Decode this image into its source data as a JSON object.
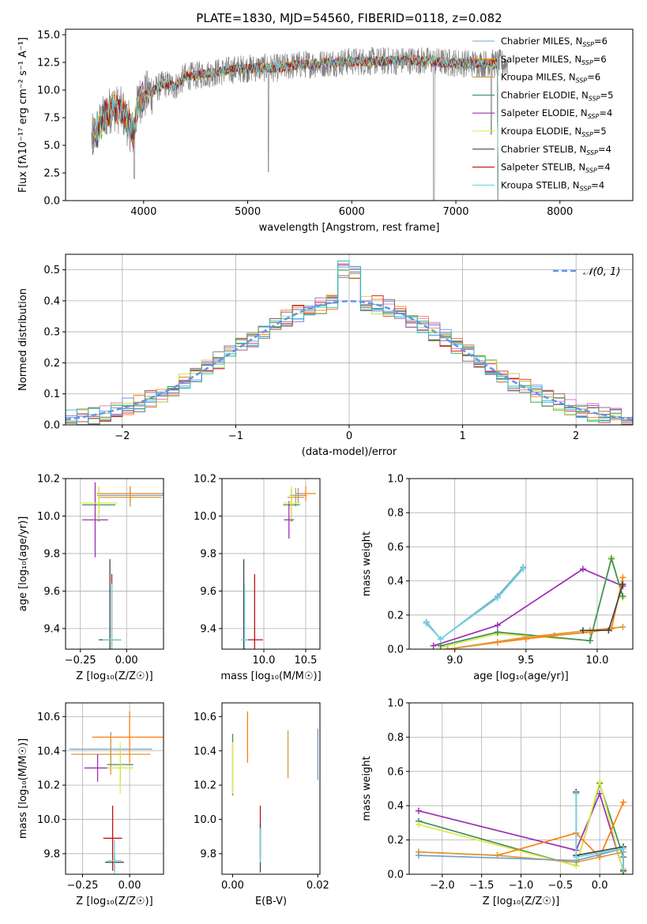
{
  "figure": {
    "title": "PLATE=1830, MJD=54560, FIBERID=0118, z=0.082"
  },
  "colors": {
    "Chabrier MILES": "#7aa0c4",
    "Salpeter MILES": "#ff7f0e",
    "Kroupa MILES": "#d99a3c",
    "Chabrier ELODIE": "#3f8f5f",
    "Salpeter ELODIE": "#9b30b0",
    "Kroupa ELODIE": "#e2ea4a",
    "Chabrier STELIB": "#444444",
    "Salpeter STELIB": "#c01010",
    "Kroupa STELIB": "#6fd6e0",
    "data": "#808080",
    "gaussian": "#6495ed",
    "grid": "#b0b0b0",
    "hist": [
      "#6495ed",
      "#ff7f0e",
      "#e377c2",
      "#8c564b",
      "#2ca02c",
      "#d62728",
      "#9467bd",
      "#bcd94a",
      "#7f7f7f",
      "#17becf"
    ]
  },
  "chart_data": [
    {
      "id": "spectrum",
      "type": "line",
      "title": "PLATE=1830, MJD=54560, FIBERID=0118, z=0.082",
      "xlabel": "wavelength [Angstrom, rest frame]",
      "ylabel": "Flux [fλ10⁻¹⁷ erg cm⁻² s⁻¹ A⁻¹]",
      "xlim": [
        3250,
        8700
      ],
      "ylim": [
        0,
        15.5
      ],
      "xticks": [
        "4000",
        "5000",
        "6000",
        "7000",
        "8000"
      ],
      "yticks": [
        "0.0",
        "2.5",
        "5.0",
        "7.5",
        "10.0",
        "12.5",
        "15.0"
      ],
      "grid": false,
      "legend_position": "upper right",
      "legend": [
        {
          "name": "Chabrier MILES, N",
          "sub": "SSP",
          "suffix": "=6"
        },
        {
          "name": "Salpeter MILES, N",
          "sub": "SSP",
          "suffix": "=6"
        },
        {
          "name": "Kroupa MILES, N",
          "sub": "SSP",
          "suffix": "=6"
        },
        {
          "name": "Chabrier ELODIE, N",
          "sub": "SSP",
          "suffix": "=5"
        },
        {
          "name": "Salpeter ELODIE, N",
          "sub": "SSP",
          "suffix": "=4"
        },
        {
          "name": "Kroupa ELODIE, N",
          "sub": "SSP",
          "suffix": "=5"
        },
        {
          "name": "Chabrier STELIB, N",
          "sub": "SSP",
          "suffix": "=4"
        },
        {
          "name": "Salpeter STELIB, N",
          "sub": "SSP",
          "suffix": "=4"
        },
        {
          "name": "Kroupa STELIB, N",
          "sub": "SSP",
          "suffix": "=4"
        }
      ],
      "continuum": {
        "x": [
          3500,
          3600,
          3700,
          3800,
          3900,
          3950,
          4000,
          4100,
          4200,
          4300,
          4400,
          4500,
          4700,
          4900,
          5100,
          5300,
          5500,
          5700,
          6000,
          6300,
          6600,
          6900,
          7200,
          7400,
          7500
        ],
        "y": [
          5.5,
          7.2,
          8.5,
          8.0,
          6.0,
          9.0,
          9.4,
          10.0,
          10.6,
          10.3,
          11.2,
          11.3,
          11.6,
          11.9,
          12.0,
          12.0,
          12.3,
          12.4,
          12.6,
          12.6,
          12.7,
          12.5,
          12.4,
          12.4,
          12.4
        ]
      }
    },
    {
      "id": "residuals",
      "type": "line",
      "xlabel": "(data-model)/error",
      "ylabel": "Normed distribution",
      "xlim": [
        -2.5,
        2.5
      ],
      "ylim": [
        0,
        0.55
      ],
      "xticks": [
        "−2",
        "−1",
        "0",
        "1",
        "2"
      ],
      "yticks": [
        "0.0",
        "0.1",
        "0.2",
        "0.3",
        "0.4",
        "0.5"
      ],
      "grid": true,
      "legend_position": "upper right",
      "legend": [
        "𝒩(0, 1)"
      ],
      "bin_width": 0.1
    },
    {
      "id": "age-vs-Z",
      "type": "scatter",
      "xlabel": "Z [log₁₀(Z/Z☉)]",
      "ylabel": "age  [log₁₀(age/yr)]",
      "xlim": [
        -0.33,
        0.2
      ],
      "ylim": [
        9.29,
        10.2
      ],
      "xticks": [
        "−0.25",
        "0.00"
      ],
      "xtick_values": [
        -0.25,
        0.0
      ],
      "yticks": [
        "9.4",
        "9.6",
        "9.8",
        "10.0",
        "10.2"
      ],
      "ytick_values": [
        9.4,
        9.6,
        9.8,
        10.0,
        10.2
      ],
      "grid": true,
      "points": [
        {
          "model": "Chabrier MILES",
          "x": 0.02,
          "y": 10.11,
          "xerr": 0.18,
          "yerr": 0.04
        },
        {
          "model": "Salpeter MILES",
          "x": 0.02,
          "y": 10.12,
          "xerr": 0.18,
          "yerr": 0.04
        },
        {
          "model": "Kroupa MILES",
          "x": 0.02,
          "y": 10.1,
          "xerr": 0.17,
          "yerr": 0.05
        },
        {
          "model": "Chabrier ELODIE",
          "x": -0.15,
          "y": 10.06,
          "xerr": 0.09,
          "yerr": 0.09
        },
        {
          "model": "Salpeter ELODIE",
          "x": -0.17,
          "y": 9.98,
          "xerr": 0.07,
          "yerr": 0.2
        },
        {
          "model": "Kroupa ELODIE",
          "x": -0.15,
          "y": 10.07,
          "xerr": 0.1,
          "yerr": 0.09
        },
        {
          "model": "Chabrier STELIB",
          "x": -0.09,
          "y": 9.34,
          "xerr": 0.06,
          "yerr": 0.43
        },
        {
          "model": "Salpeter STELIB",
          "x": -0.08,
          "y": 9.34,
          "xerr": 0.05,
          "yerr": 0.35
        },
        {
          "model": "Kroupa STELIB",
          "x": -0.08,
          "y": 9.34,
          "xerr": 0.05,
          "yerr": 0.3
        }
      ]
    },
    {
      "id": "age-vs-mass",
      "type": "scatter",
      "xlabel": "mass [log₁₀(M/M☉)]",
      "ylabel": "",
      "xlim": [
        9.5,
        10.67
      ],
      "ylim": [
        9.29,
        10.2
      ],
      "xticks": [
        "10.0",
        "10.5"
      ],
      "xtick_values": [
        10.0,
        10.5
      ],
      "yticks": [
        "9.4",
        "9.6",
        "9.8",
        "10.0",
        "10.2"
      ],
      "ytick_values": [
        9.4,
        9.6,
        9.8,
        10.0,
        10.2
      ],
      "grid": true,
      "points": [
        {
          "model": "Chabrier MILES",
          "x": 10.41,
          "y": 10.11,
          "xerr": 0.1,
          "yerr": 0.04
        },
        {
          "model": "Salpeter MILES",
          "x": 10.5,
          "y": 10.12,
          "xerr": 0.12,
          "yerr": 0.04
        },
        {
          "model": "Kroupa MILES",
          "x": 10.38,
          "y": 10.1,
          "xerr": 0.1,
          "yerr": 0.05
        },
        {
          "model": "Chabrier ELODIE",
          "x": 10.33,
          "y": 10.06,
          "xerr": 0.1,
          "yerr": 0.09
        },
        {
          "model": "Salpeter ELODIE",
          "x": 10.3,
          "y": 9.98,
          "xerr": 0.06,
          "yerr": 0.1
        },
        {
          "model": "Kroupa ELODIE",
          "x": 10.33,
          "y": 10.07,
          "xerr": 0.1,
          "yerr": 0.09
        },
        {
          "model": "Chabrier STELIB",
          "x": 9.76,
          "y": 9.34,
          "xerr": 0.03,
          "yerr": 0.43
        },
        {
          "model": "Salpeter STELIB",
          "x": 9.89,
          "y": 9.34,
          "xerr": 0.1,
          "yerr": 0.35
        },
        {
          "model": "Kroupa STELIB",
          "x": 9.77,
          "y": 9.34,
          "xerr": 0.04,
          "yerr": 0.3
        }
      ]
    },
    {
      "id": "weight-vs-age",
      "type": "line",
      "xlabel": "age  [log₁₀(age/yr)]",
      "ylabel": "mass weight",
      "xlim": [
        8.68,
        10.25
      ],
      "ylim": [
        0,
        1.0
      ],
      "xticks": [
        "9.0",
        "9.5",
        "10.0"
      ],
      "xtick_values": [
        9.0,
        9.5,
        10.0
      ],
      "yticks": [
        "0.0",
        "0.2",
        "0.4",
        "0.6",
        "0.8",
        "1.0"
      ],
      "ytick_values": [
        0,
        0.2,
        0.4,
        0.6,
        0.8,
        1.0
      ],
      "grid": true,
      "series": [
        {
          "name": "Chabrier MILES",
          "x": [
            8.8,
            8.9,
            9.3,
            9.48
          ],
          "y": [
            0.16,
            0.06,
            0.31,
            0.48
          ]
        },
        {
          "name": "Kroupa STELIB",
          "x": [
            8.8,
            8.9,
            9.3,
            9.48
          ],
          "y": [
            0.15,
            0.06,
            0.3,
            0.47
          ]
        },
        {
          "name": "Salpeter ELODIE",
          "x": [
            8.85,
            9.3,
            9.9,
            10.18
          ],
          "y": [
            0.02,
            0.14,
            0.47,
            0.37
          ]
        },
        {
          "name": "Kroupa ELODIE",
          "x": [
            8.9,
            9.3,
            9.95,
            10.1,
            10.18
          ],
          "y": [
            0.01,
            0.09,
            0.05,
            0.54,
            0.3
          ]
        },
        {
          "name": "Chabrier ELODIE",
          "x": [
            8.9,
            9.3,
            9.95,
            10.1,
            10.18
          ],
          "y": [
            0.02,
            0.1,
            0.05,
            0.53,
            0.31
          ]
        },
        {
          "name": "Salpeter MILES",
          "x": [
            8.95,
            9.3,
            9.5,
            9.7,
            9.95,
            10.1,
            10.18
          ],
          "y": [
            0.0,
            0.04,
            0.06,
            0.08,
            0.1,
            0.12,
            0.42
          ]
        },
        {
          "name": "Kroupa MILES",
          "x": [
            8.95,
            9.5,
            9.95,
            10.18
          ],
          "y": [
            0.0,
            0.07,
            0.11,
            0.13
          ]
        },
        {
          "name": "Chabrier STELIB",
          "x": [
            9.9,
            10.08,
            10.18
          ],
          "y": [
            0.11,
            0.11,
            0.38
          ]
        }
      ]
    },
    {
      "id": "mass-vs-Z",
      "type": "scatter",
      "xlabel": "Z [log₁₀(Z/Z☉)]",
      "ylabel": "mass [log₁₀(M/M☉)]",
      "xlim": [
        -0.34,
        0.18
      ],
      "ylim": [
        9.68,
        10.68
      ],
      "xticks": [
        "−0.25",
        "0.00"
      ],
      "xtick_values": [
        -0.25,
        0.0
      ],
      "yticks": [
        "9.8",
        "10.0",
        "10.2",
        "10.4",
        "10.6"
      ],
      "ytick_values": [
        9.8,
        10.0,
        10.2,
        10.4,
        10.6
      ],
      "grid": true,
      "points": [
        {
          "model": "Chabrier MILES",
          "x": -0.1,
          "y": 10.41,
          "xerr": 0.22,
          "yerr": 0.1
        },
        {
          "model": "Salpeter MILES",
          "x": 0.0,
          "y": 10.48,
          "xerr": 0.2,
          "yerr": 0.15
        },
        {
          "model": "Kroupa MILES",
          "x": -0.1,
          "y": 10.38,
          "xerr": 0.21,
          "yerr": 0.12
        },
        {
          "model": "Chabrier ELODIE",
          "x": -0.05,
          "y": 10.32,
          "xerr": 0.07,
          "yerr": 0.1
        },
        {
          "model": "Salpeter ELODIE",
          "x": -0.17,
          "y": 10.3,
          "xerr": 0.07,
          "yerr": 0.08
        },
        {
          "model": "Kroupa ELODIE",
          "x": -0.05,
          "y": 10.3,
          "xerr": 0.07,
          "yerr": 0.15
        },
        {
          "model": "Chabrier STELIB",
          "x": -0.08,
          "y": 9.75,
          "xerr": 0.05,
          "yerr": 0.05
        },
        {
          "model": "Salpeter STELIB",
          "x": -0.09,
          "y": 9.89,
          "xerr": 0.05,
          "yerr": 0.19
        },
        {
          "model": "Kroupa STELIB",
          "x": -0.08,
          "y": 9.76,
          "xerr": 0.04,
          "yerr": 0.12
        }
      ]
    },
    {
      "id": "mass-vs-EBV",
      "type": "scatter",
      "xlabel": "E(B-V)",
      "ylabel": "",
      "xlim": [
        -0.0025,
        0.0205
      ],
      "ylim": [
        9.68,
        10.68
      ],
      "xticks": [
        "0.00",
        "0.02"
      ],
      "xtick_values": [
        0.0,
        0.02
      ],
      "yticks": [
        "9.8",
        "10.0",
        "10.2",
        "10.4",
        "10.6"
      ],
      "ytick_values": [
        9.8,
        10.0,
        10.2,
        10.4,
        10.6
      ],
      "grid": false,
      "points": [
        {
          "model": "Chabrier MILES",
          "x": 0.02,
          "y": 10.38,
          "xerr": 0,
          "yerr": 0.15
        },
        {
          "model": "Salpeter MILES",
          "x": 0.0035,
          "y": 10.48,
          "xerr": 0,
          "yerr": 0.15
        },
        {
          "model": "Kroupa MILES",
          "x": 0.013,
          "y": 10.38,
          "xerr": 0,
          "yerr": 0.14
        },
        {
          "model": "Chabrier ELODIE",
          "x": 0.0,
          "y": 10.32,
          "xerr": 0,
          "yerr": 0.18
        },
        {
          "model": "Kroupa ELODIE",
          "x": 0.0,
          "y": 10.3,
          "xerr": 0,
          "yerr": 0.15
        },
        {
          "model": "Salpeter STELIB",
          "x": 0.0065,
          "y": 9.93,
          "xerr": 0,
          "yerr": 0.15
        },
        {
          "model": "Chabrier STELIB",
          "x": 0.0065,
          "y": 9.83,
          "xerr": 0,
          "yerr": 0.14
        },
        {
          "model": "Kroupa STELIB",
          "x": 0.0065,
          "y": 9.85,
          "xerr": 0,
          "yerr": 0.1
        }
      ]
    },
    {
      "id": "weight-vs-Z",
      "type": "line",
      "xlabel": "Z [log₁₀(Z/Z☉)]",
      "ylabel": "mass weight",
      "xlim": [
        -2.42,
        0.42
      ],
      "ylim": [
        0,
        1.0
      ],
      "xticks": [
        "−2.0",
        "−1.5",
        "−1.0",
        "−0.5",
        "0.0"
      ],
      "xtick_values": [
        -2.0,
        -1.5,
        -1.0,
        -0.5,
        0.0
      ],
      "yticks": [
        "0.0",
        "0.2",
        "0.4",
        "0.6",
        "0.8",
        "1.0"
      ],
      "ytick_values": [
        0,
        0.2,
        0.4,
        0.6,
        0.8,
        1.0
      ],
      "grid": true,
      "series": [
        {
          "name": "Salpeter ELODIE",
          "x": [
            -2.3,
            -0.3,
            0.0,
            0.3
          ],
          "y": [
            0.37,
            0.14,
            0.47,
            0.02
          ]
        },
        {
          "name": "Chabrier ELODIE",
          "x": [
            -2.3,
            -0.3,
            0.0,
            0.3
          ],
          "y": [
            0.31,
            0.05,
            0.53,
            0.1
          ]
        },
        {
          "name": "Kroupa ELODIE",
          "x": [
            -2.3,
            -0.3,
            0.0,
            0.3
          ],
          "y": [
            0.29,
            0.05,
            0.54,
            0.01
          ]
        },
        {
          "name": "Salpeter MILES",
          "x": [
            -2.3,
            -1.3,
            -0.3,
            0.0,
            0.3
          ],
          "y": [
            0.13,
            0.11,
            0.24,
            0.1,
            0.42
          ]
        },
        {
          "name": "Kroupa MILES",
          "x": [
            -2.3,
            -1.3,
            -0.3,
            0.0,
            0.3
          ],
          "y": [
            0.13,
            0.11,
            0.07,
            0.1,
            0.13
          ]
        },
        {
          "name": "Chabrier MILES",
          "x": [
            -2.3,
            -0.3,
            0.3
          ],
          "y": [
            0.11,
            0.08,
            0.15
          ]
        },
        {
          "name": "Chabrier STELIB",
          "x": [
            -0.3,
            -0.3,
            0.3,
            0.3
          ],
          "y": [
            0.48,
            0.11,
            0.16,
            0.02
          ]
        },
        {
          "name": "Kroupa STELIB",
          "x": [
            -0.3,
            -0.3,
            0.3,
            0.3
          ],
          "y": [
            0.47,
            0.1,
            0.15,
            0.03
          ]
        }
      ]
    }
  ]
}
